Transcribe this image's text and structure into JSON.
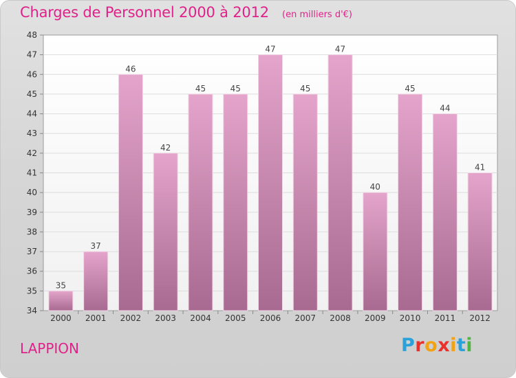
{
  "header": {
    "title": "Charges de Personnel 2000 à 2012",
    "subtitle": "(en milliers d'€)"
  },
  "footer": {
    "commune": "LAPPION",
    "brand_letters": [
      "P",
      "r",
      "o",
      "x",
      "i",
      "t",
      "i"
    ]
  },
  "colors": {
    "title": "#e0218a",
    "bar_top": "#e4a4cb",
    "bar_bottom": "#a86a90",
    "brand_blue": "#2aa1d9",
    "brand_red": "#e9302a",
    "brand_orange": "#f2a313",
    "brand_green": "#4fb543"
  },
  "chart_data": {
    "type": "bar",
    "title": "Charges de Personnel 2000 à 2012",
    "subtitle": "(en milliers d'€)",
    "categories": [
      "2000",
      "2001",
      "2002",
      "2003",
      "2004",
      "2005",
      "2006",
      "2007",
      "2008",
      "2009",
      "2010",
      "2011",
      "2012"
    ],
    "values": [
      35,
      37,
      46,
      42,
      45,
      45,
      47,
      45,
      47,
      40,
      45,
      44,
      41
    ],
    "ylim": [
      34,
      48
    ],
    "yticks": [
      34,
      35,
      36,
      37,
      38,
      39,
      40,
      41,
      42,
      43,
      44,
      45,
      46,
      47,
      48
    ],
    "grid": true,
    "legend": "none"
  }
}
